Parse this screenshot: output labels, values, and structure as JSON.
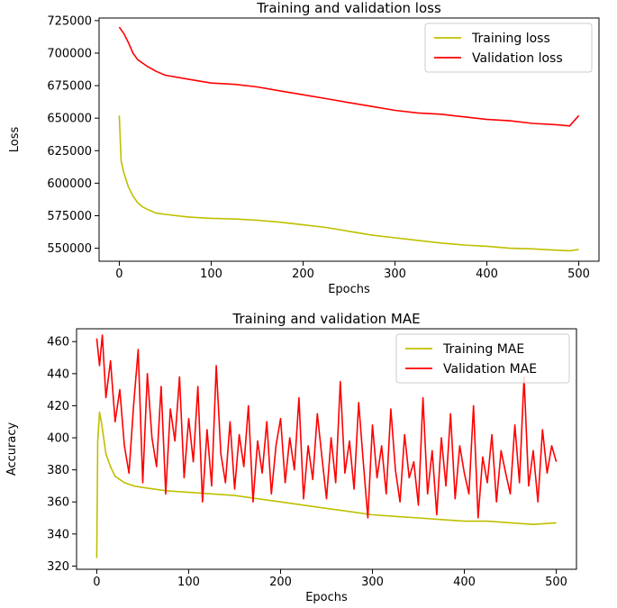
{
  "chart_data": [
    {
      "type": "line",
      "title": "Training and validation loss",
      "xlabel": "Epochs",
      "ylabel": "Loss",
      "xlim": [
        -22,
        522
      ],
      "ylim": [
        540000,
        727000
      ],
      "xticks": [
        0,
        100,
        200,
        300,
        400,
        500
      ],
      "yticks": [
        550000,
        575000,
        600000,
        625000,
        650000,
        675000,
        700000,
        725000
      ],
      "grid": false,
      "legend_position": "top-right",
      "series": [
        {
          "name": "Training loss",
          "color": "#bfbf00",
          "x": [
            0,
            2,
            5,
            10,
            15,
            20,
            25,
            30,
            40,
            50,
            75,
            100,
            125,
            150,
            175,
            200,
            225,
            250,
            275,
            300,
            325,
            350,
            375,
            400,
            425,
            450,
            475,
            490,
            500
          ],
          "y": [
            652000,
            617000,
            608000,
            597000,
            590000,
            585000,
            582000,
            580000,
            577000,
            576000,
            574000,
            573000,
            572500,
            571500,
            570000,
            568000,
            566000,
            563000,
            560000,
            558000,
            556000,
            554000,
            552500,
            551500,
            550000,
            549500,
            548500,
            548000,
            549000
          ]
        },
        {
          "name": "Validation loss",
          "color": "#ff0000",
          "x": [
            0,
            5,
            10,
            15,
            20,
            30,
            40,
            50,
            75,
            100,
            125,
            150,
            175,
            200,
            225,
            250,
            275,
            300,
            325,
            350,
            375,
            400,
            425,
            450,
            475,
            490,
            500
          ],
          "y": [
            720000,
            715000,
            708000,
            700000,
            695000,
            690000,
            686000,
            683000,
            680000,
            677000,
            676000,
            674000,
            671000,
            668000,
            665000,
            662000,
            659000,
            656000,
            654000,
            653000,
            651000,
            649000,
            648000,
            646000,
            645000,
            644000,
            652000
          ]
        }
      ]
    },
    {
      "type": "line",
      "title": "Training and validation MAE",
      "xlabel": "Epochs",
      "ylabel": "Accuracy",
      "xlim": [
        -22,
        522
      ],
      "ylim": [
        318,
        468
      ],
      "xticks": [
        0,
        100,
        200,
        300,
        400,
        500
      ],
      "yticks": [
        320,
        340,
        360,
        380,
        400,
        420,
        440,
        460
      ],
      "grid": false,
      "legend_position": "top-right",
      "series": [
        {
          "name": "Training MAE",
          "color": "#bfbf00",
          "x": [
            0,
            1,
            3,
            5,
            8,
            10,
            15,
            20,
            25,
            30,
            40,
            50,
            75,
            100,
            125,
            150,
            175,
            200,
            225,
            250,
            275,
            300,
            325,
            350,
            375,
            400,
            425,
            450,
            475,
            500
          ],
          "y": [
            325,
            398,
            416,
            410,
            398,
            390,
            382,
            376,
            374,
            372,
            370,
            369,
            367,
            366,
            365,
            364,
            362,
            360,
            358,
            356,
            354,
            352,
            351,
            350,
            349,
            348,
            348,
            347,
            346,
            347
          ]
        },
        {
          "name": "Validation MAE",
          "color": "#ff0000",
          "x": [
            0,
            3,
            6,
            10,
            15,
            20,
            25,
            30,
            35,
            40,
            45,
            50,
            55,
            60,
            65,
            70,
            75,
            80,
            85,
            90,
            95,
            100,
            105,
            110,
            115,
            120,
            125,
            130,
            135,
            140,
            145,
            150,
            155,
            160,
            165,
            170,
            175,
            180,
            185,
            190,
            195,
            200,
            205,
            210,
            215,
            220,
            225,
            230,
            235,
            240,
            245,
            250,
            255,
            260,
            265,
            270,
            275,
            280,
            285,
            290,
            295,
            300,
            305,
            310,
            315,
            320,
            325,
            330,
            335,
            340,
            345,
            350,
            355,
            360,
            365,
            370,
            375,
            380,
            385,
            390,
            395,
            400,
            405,
            410,
            415,
            420,
            425,
            430,
            435,
            440,
            445,
            450,
            455,
            460,
            465,
            470,
            475,
            480,
            485,
            490,
            495,
            500
          ],
          "y": [
            462,
            445,
            464,
            425,
            448,
            410,
            430,
            395,
            378,
            420,
            455,
            372,
            440,
            400,
            382,
            432,
            365,
            418,
            398,
            438,
            375,
            412,
            385,
            432,
            360,
            405,
            370,
            445,
            390,
            372,
            410,
            368,
            402,
            382,
            420,
            360,
            398,
            378,
            410,
            365,
            395,
            412,
            372,
            400,
            380,
            425,
            362,
            395,
            374,
            415,
            388,
            362,
            400,
            372,
            435,
            378,
            398,
            368,
            422,
            385,
            350,
            408,
            375,
            395,
            365,
            418,
            380,
            360,
            402,
            375,
            385,
            358,
            425,
            365,
            392,
            352,
            400,
            370,
            415,
            362,
            395,
            378,
            365,
            420,
            350,
            388,
            372,
            402,
            360,
            392,
            378,
            365,
            408,
            372,
            438,
            370,
            392,
            360,
            405,
            378,
            395,
            385
          ]
        }
      ]
    }
  ]
}
